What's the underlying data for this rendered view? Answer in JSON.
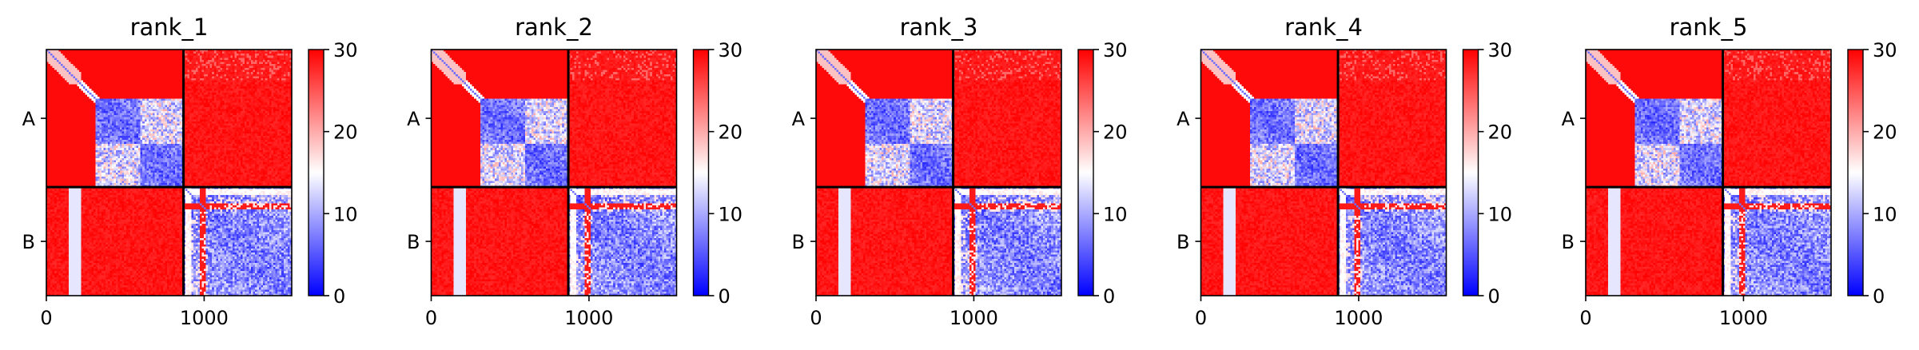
{
  "figure": {
    "background": "#ffffff"
  },
  "chart_data": [
    {
      "type": "heatmap",
      "title": "rank_1",
      "chains": [
        {
          "label": "A",
          "start": 0,
          "end": 869
        },
        {
          "label": "B",
          "start": 869,
          "end": 1555
        }
      ],
      "x_ticks": [
        0,
        1000
      ],
      "x_tick_labels": [
        "0",
        "1000"
      ],
      "xlim": [
        0,
        1555
      ],
      "colorbar": {
        "min": 0,
        "max": 30,
        "ticks": [
          "0",
          "10",
          "20",
          "30"
        ],
        "cmap": "bwr"
      },
      "grid": false
    },
    {
      "type": "heatmap",
      "title": "rank_2",
      "chains": [
        {
          "label": "A",
          "start": 0,
          "end": 869
        },
        {
          "label": "B",
          "start": 869,
          "end": 1555
        }
      ],
      "x_ticks": [
        0,
        1000
      ],
      "x_tick_labels": [
        "0",
        "1000"
      ],
      "xlim": [
        0,
        1555
      ],
      "colorbar": {
        "min": 0,
        "max": 30,
        "ticks": [
          "0",
          "10",
          "20",
          "30"
        ],
        "cmap": "bwr"
      },
      "grid": false
    },
    {
      "type": "heatmap",
      "title": "rank_3",
      "chains": [
        {
          "label": "A",
          "start": 0,
          "end": 869
        },
        {
          "label": "B",
          "start": 869,
          "end": 1555
        }
      ],
      "x_ticks": [
        0,
        1000
      ],
      "x_tick_labels": [
        "0",
        "1000"
      ],
      "xlim": [
        0,
        1555
      ],
      "colorbar": {
        "min": 0,
        "max": 30,
        "ticks": [
          "0",
          "10",
          "20",
          "30"
        ],
        "cmap": "bwr"
      },
      "grid": false
    },
    {
      "type": "heatmap",
      "title": "rank_4",
      "chains": [
        {
          "label": "A",
          "start": 0,
          "end": 869
        },
        {
          "label": "B",
          "start": 869,
          "end": 1555
        }
      ],
      "x_ticks": [
        0,
        1000
      ],
      "x_tick_labels": [
        "0",
        "1000"
      ],
      "xlim": [
        0,
        1555
      ],
      "colorbar": {
        "min": 0,
        "max": 30,
        "ticks": [
          "0",
          "10",
          "20",
          "30"
        ],
        "cmap": "bwr"
      },
      "grid": false
    },
    {
      "type": "heatmap",
      "title": "rank_5",
      "chains": [
        {
          "label": "A",
          "start": 0,
          "end": 869
        },
        {
          "label": "B",
          "start": 869,
          "end": 1555
        }
      ],
      "x_ticks": [
        0,
        1000
      ],
      "x_tick_labels": [
        "0",
        "1000"
      ],
      "xlim": [
        0,
        1555
      ],
      "colorbar": {
        "min": 0,
        "max": 30,
        "ticks": [
          "0",
          "10",
          "20",
          "30"
        ],
        "cmap": "bwr"
      },
      "grid": false
    }
  ]
}
